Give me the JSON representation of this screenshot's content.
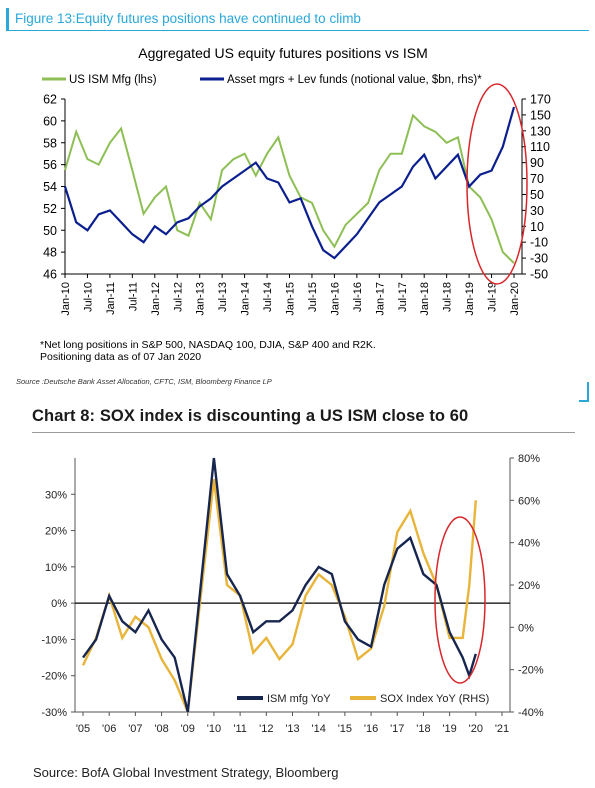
{
  "header": {
    "figure_title": "Figure 13:Equity futures positions have continued to climb"
  },
  "chart1_text": {
    "footnote": "*Net long positions in S&P 500, NASDAQ 100, DJIA, S&P 400 and R2K.\nPositioning data as of 07 Jan 2020",
    "source": "Source :Deutsche Bank Asset Allocation, CFTC, ISM, Bloomberg Finance LP"
  },
  "chart2_text": {
    "title": "Chart 8: SOX index is discounting a US ISM close to 60",
    "source": "Source: BofA Global Investment Strategy, Bloomberg"
  },
  "chart_data": [
    {
      "type": "line",
      "title": "Aggregated US equity futures positions vs ISM",
      "x_tick_labels": [
        "Jan-10",
        "Jul-10",
        "Jan-11",
        "Jul-11",
        "Jan-12",
        "Jul-12",
        "Jan-13",
        "Jul-13",
        "Jan-14",
        "Jul-14",
        "Jan-15",
        "Jul-15",
        "Jan-16",
        "Jul-16",
        "Jan-17",
        "Jul-17",
        "Jan-18",
        "Jul-18",
        "Jan-19",
        "Jul-19",
        "Jan-20"
      ],
      "y_left": {
        "range": [
          46,
          62
        ],
        "ticks": [
          "46",
          "48",
          "50",
          "52",
          "54",
          "56",
          "58",
          "60",
          "62"
        ]
      },
      "y_right": {
        "range": [
          -50,
          170
        ],
        "ticks": [
          "-50",
          "-30",
          "-10",
          "10",
          "30",
          "50",
          "70",
          "90",
          "110",
          "130",
          "150",
          "170"
        ]
      },
      "legend_position": "top",
      "annotation": "red ellipse highlighting late 2019 to Jan 2020",
      "series": [
        {
          "name": "US ISM Mfg (lhs)",
          "axis": "left",
          "color": "#8dbf55",
          "x": [
            2010.0,
            2010.25,
            2010.5,
            2010.75,
            2011.0,
            2011.25,
            2011.5,
            2011.75,
            2012.0,
            2012.25,
            2012.5,
            2012.75,
            2013.0,
            2013.25,
            2013.5,
            2013.75,
            2014.0,
            2014.25,
            2014.5,
            2014.75,
            2015.0,
            2015.25,
            2015.5,
            2015.75,
            2016.0,
            2016.25,
            2016.5,
            2016.75,
            2017.0,
            2017.25,
            2017.5,
            2017.75,
            2018.0,
            2018.25,
            2018.5,
            2018.75,
            2019.0,
            2019.25,
            2019.5,
            2019.75,
            2020.0
          ],
          "values": [
            55.5,
            59.0,
            56.5,
            56.0,
            58.0,
            59.3,
            55.5,
            51.5,
            53.0,
            54.0,
            50.0,
            49.5,
            52.5,
            51.0,
            55.5,
            56.5,
            57.0,
            55.0,
            57.0,
            58.5,
            55.0,
            53.0,
            52.5,
            50.0,
            48.5,
            50.5,
            51.5,
            52.5,
            55.5,
            57.0,
            57.0,
            60.5,
            59.5,
            59.0,
            58.0,
            58.5,
            54.0,
            53.0,
            51.0,
            48.0,
            47.0
          ]
        },
        {
          "name": "Asset mgrs + Lev funds (notional value, $bn, rhs)*",
          "axis": "right",
          "color": "#0b1f8f",
          "x": [
            2010.0,
            2010.25,
            2010.5,
            2010.75,
            2011.0,
            2011.25,
            2011.5,
            2011.75,
            2012.0,
            2012.25,
            2012.5,
            2012.75,
            2013.0,
            2013.25,
            2013.5,
            2013.75,
            2014.0,
            2014.25,
            2014.5,
            2014.75,
            2015.0,
            2015.25,
            2015.5,
            2015.75,
            2016.0,
            2016.25,
            2016.5,
            2016.75,
            2017.0,
            2017.25,
            2017.5,
            2017.75,
            2018.0,
            2018.25,
            2018.5,
            2018.75,
            2019.0,
            2019.25,
            2019.5,
            2019.75,
            2020.0
          ],
          "values": [
            60,
            15,
            5,
            25,
            30,
            15,
            0,
            -10,
            10,
            0,
            15,
            20,
            35,
            45,
            60,
            70,
            80,
            90,
            70,
            65,
            40,
            45,
            10,
            -20,
            -30,
            -15,
            0,
            20,
            40,
            50,
            60,
            85,
            100,
            70,
            85,
            100,
            60,
            75,
            80,
            110,
            160
          ]
        }
      ]
    },
    {
      "type": "line",
      "title": "Chart 8: SOX index is discounting a US ISM close to 60",
      "x_tick_labels": [
        "'05",
        "'06",
        "'07",
        "'08",
        "'09",
        "'10",
        "'11",
        "'12",
        "'13",
        "'14",
        "'15",
        "'16",
        "'17",
        "'18",
        "'19",
        "'20",
        "'21"
      ],
      "y_left": {
        "range": [
          -30,
          40
        ],
        "ticks": [
          "-30%",
          "-20%",
          "-10%",
          "0%",
          "10%",
          "20%",
          "30%"
        ]
      },
      "y_right": {
        "range": [
          -40,
          80
        ],
        "ticks": [
          "-40%",
          "-20%",
          "0%",
          "20%",
          "40%",
          "60%",
          "80%"
        ]
      },
      "legend_position": "bottom-center",
      "annotation": "red ellipse highlighting 2019-2020",
      "series": [
        {
          "name": "ISM mfg YoY",
          "axis": "left",
          "color": "#17264f",
          "x": [
            2005.0,
            2005.5,
            2006.0,
            2006.5,
            2007.0,
            2007.5,
            2008.0,
            2008.5,
            2009.0,
            2009.5,
            2010.0,
            2010.5,
            2011.0,
            2011.5,
            2012.0,
            2012.5,
            2013.0,
            2013.5,
            2014.0,
            2014.5,
            2015.0,
            2015.5,
            2016.0,
            2016.5,
            2017.0,
            2017.5,
            2018.0,
            2018.5,
            2019.0,
            2019.5,
            2019.75,
            2020.0
          ],
          "values": [
            -15,
            -10,
            2,
            -5,
            -8,
            -2,
            -10,
            -15,
            -30,
            5,
            40,
            8,
            2,
            -8,
            -5,
            -5,
            -2,
            5,
            10,
            8,
            -5,
            -10,
            -12,
            5,
            15,
            18,
            8,
            5,
            -8,
            -15,
            -20,
            -14
          ]
        },
        {
          "name": "SOX Index YoY (RHS)",
          "axis": "right",
          "color": "#e8b43a",
          "x": [
            2005.0,
            2005.5,
            2006.0,
            2006.5,
            2007.0,
            2007.5,
            2008.0,
            2008.5,
            2009.0,
            2009.5,
            2010.0,
            2010.5,
            2011.0,
            2011.5,
            2012.0,
            2012.5,
            2013.0,
            2013.5,
            2014.0,
            2014.5,
            2015.0,
            2015.5,
            2016.0,
            2016.5,
            2017.0,
            2017.5,
            2018.0,
            2018.5,
            2019.0,
            2019.5,
            2019.75,
            2020.0
          ],
          "values": [
            -18,
            -5,
            15,
            -5,
            5,
            0,
            -15,
            -25,
            -40,
            15,
            70,
            20,
            15,
            -12,
            -5,
            -15,
            -8,
            15,
            25,
            20,
            5,
            -15,
            -10,
            10,
            45,
            55,
            35,
            20,
            -5,
            -5,
            20,
            60
          ]
        }
      ]
    }
  ]
}
